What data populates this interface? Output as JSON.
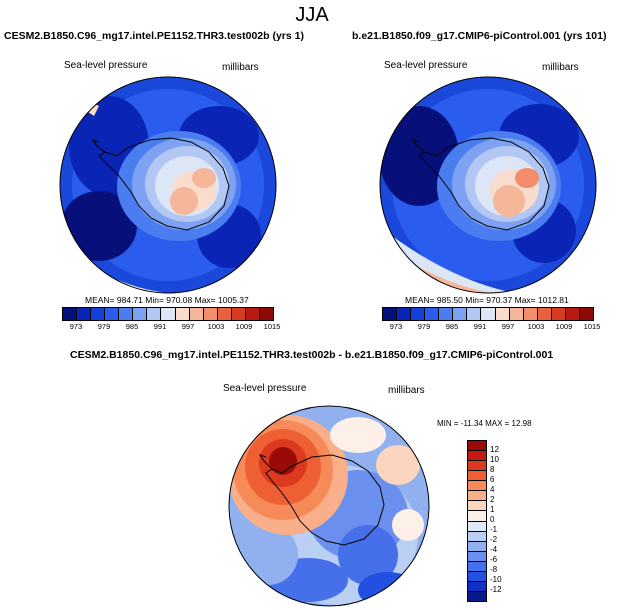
{
  "page": {
    "season": "JJA"
  },
  "panels": [
    {
      "title": "CESM2.B1850.C96_mg17.intel.PE1152.THR3.test002b (yrs 1)",
      "left_label": "Sea-level pressure",
      "right_label": "millibars",
      "stats": "MEAN= 984.71  Min= 970.08  Max= 1005.37"
    },
    {
      "title": "b.e21.B1850.f09_g17.CMIP6-piControl.001 (yrs 101)",
      "left_label": "Sea-level pressure",
      "right_label": "millibars",
      "stats": "MEAN= 985.50  Min= 970.37  Max= 1012.81"
    },
    {
      "title": "CESM2.B1850.C96_mg17.intel.PE1152.THR3.test002b - b.e21.B1850.f09_g17.CMIP6-piControl.001",
      "left_label": "Sea-level pressure",
      "right_label": "millibars",
      "stats": "MIN = -11.34  MAX =  12.98"
    }
  ],
  "colorbar_abs": {
    "ticks": [
      "973",
      "979",
      "985",
      "991",
      "997",
      "1003",
      "1009",
      "1015"
    ],
    "colors": [
      "#07107a",
      "#0a25b5",
      "#1241d9",
      "#2a5ded",
      "#4a7ef0",
      "#7ea1f2",
      "#b3c7f4",
      "#dce6f7",
      "#f9dccb",
      "#f6b69a",
      "#f28c6a",
      "#ea6140",
      "#d93a22",
      "#b81a12",
      "#8c0a08"
    ]
  },
  "colorbar_diff": {
    "ticks": [
      "12",
      "10",
      "8",
      "6",
      "4",
      "2",
      "1",
      "0",
      "-1",
      "-2",
      "-4",
      "-6",
      "-8",
      "-10",
      "-12"
    ],
    "colors": [
      "#9a0b08",
      "#c41a10",
      "#dc3a1e",
      "#ee5f34",
      "#f68a59",
      "#f9b08a",
      "#fbd5bd",
      "#fdf0e8",
      "#deeaf8",
      "#b9cff3",
      "#90b0f0",
      "#6a8fee",
      "#4570ea",
      "#2250e0",
      "#1030c4",
      "#081a8a"
    ]
  }
}
